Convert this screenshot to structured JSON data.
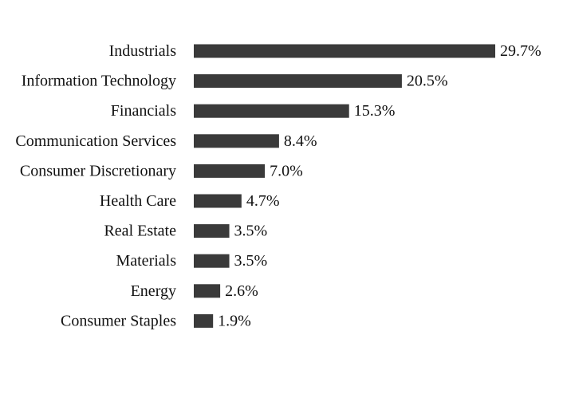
{
  "chart_data": {
    "type": "bar",
    "orientation": "horizontal",
    "categories": [
      "Industrials",
      "Information Technology",
      "Financials",
      "Communication Services",
      "Consumer Discretionary",
      "Health Care",
      "Real Estate",
      "Materials",
      "Energy",
      "Consumer Staples"
    ],
    "values": [
      29.7,
      20.5,
      15.3,
      8.4,
      7.0,
      4.7,
      3.5,
      3.5,
      2.6,
      1.9
    ],
    "value_labels": [
      "29.7%",
      "20.5%",
      "15.3%",
      "8.4%",
      "7.0%",
      "4.7%",
      "3.5%",
      "3.5%",
      "2.6%",
      "1.9%"
    ],
    "bar_color": "#3a3a3a",
    "grid": false,
    "legend": "none"
  }
}
